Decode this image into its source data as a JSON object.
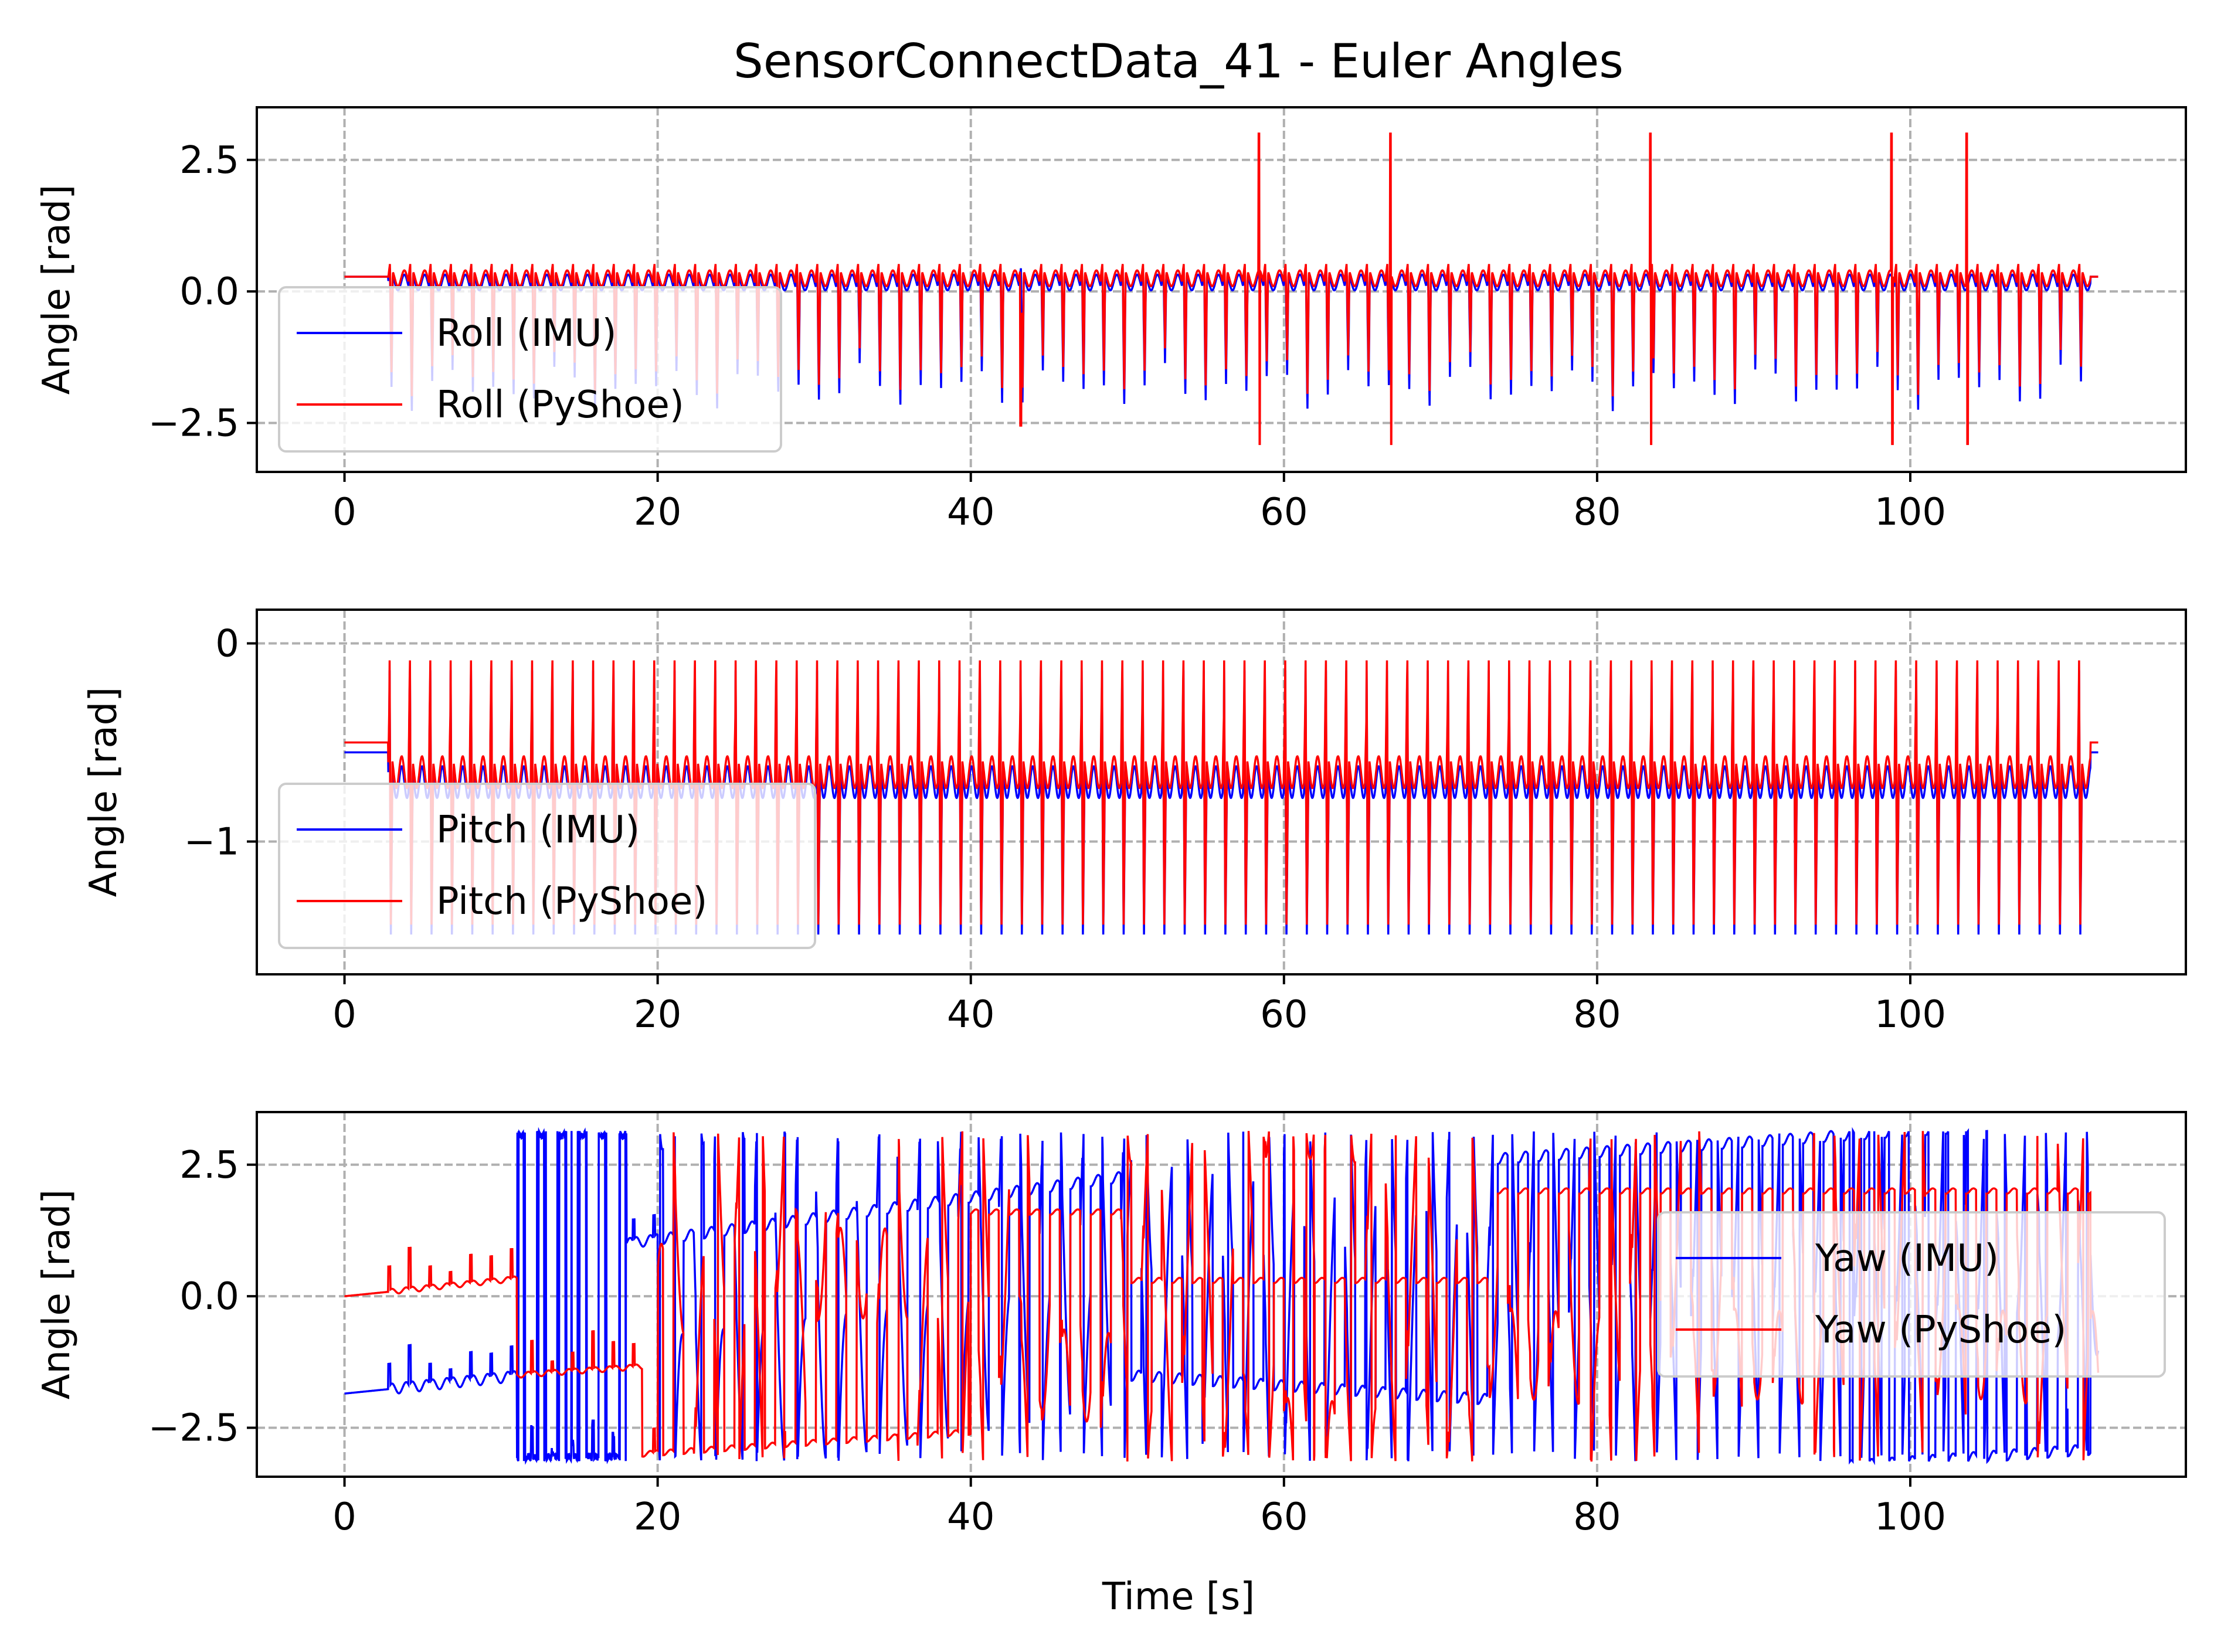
{
  "title": "SensorConnectData_41 - Euler Angles",
  "xlabel": "Time [s]",
  "colors": {
    "imu": "#0000ff",
    "pyshoe": "#ff0000",
    "grid": "#b0b0b0"
  },
  "chart_data": [
    {
      "type": "line",
      "ylabel": "Angle [rad]",
      "xlim": [
        -5.6,
        117.6
      ],
      "ylim": [
        -3.43,
        3.5
      ],
      "xticks": [
        0,
        20,
        40,
        60,
        80,
        100
      ],
      "yticks": [
        2.5,
        0.0,
        -2.5
      ],
      "ytick_labels": [
        "2.5",
        "0.0",
        "−2.5"
      ],
      "grid": true,
      "legend": "lower-left",
      "series": [
        {
          "name": "Roll (IMU)",
          "kind": "roll-imu"
        },
        {
          "name": "Roll (PyShoe)",
          "kind": "roll-pyshoe"
        }
      ],
      "notes_spikes_pyshoe": [
        58.4,
        66.8,
        83.4,
        98.8,
        103.6
      ]
    },
    {
      "type": "line",
      "ylabel": "Angle [rad]",
      "xlim": [
        -5.6,
        117.6
      ],
      "ylim": [
        -1.67,
        0.17
      ],
      "xticks": [
        0,
        20,
        40,
        60,
        80,
        100
      ],
      "yticks": [
        0,
        -1
      ],
      "ytick_labels": [
        "0",
        "−1"
      ],
      "grid": true,
      "legend": "lower-left",
      "series": [
        {
          "name": "Pitch (IMU)",
          "kind": "pitch-imu"
        },
        {
          "name": "Pitch (PyShoe)",
          "kind": "pitch-pyshoe"
        }
      ]
    },
    {
      "type": "line",
      "ylabel": "Angle [rad]",
      "xlim": [
        -5.6,
        117.6
      ],
      "ylim": [
        -3.43,
        3.5
      ],
      "xticks": [
        0,
        20,
        40,
        60,
        80,
        100
      ],
      "yticks": [
        2.5,
        0.0,
        -2.5
      ],
      "ytick_labels": [
        "2.5",
        "0.0",
        "−2.5"
      ],
      "grid": true,
      "legend": "right",
      "series": [
        {
          "name": "Yaw (IMU)",
          "kind": "yaw-imu"
        },
        {
          "name": "Yaw (PyShoe)",
          "kind": "yaw-pyshoe"
        }
      ]
    }
  ]
}
